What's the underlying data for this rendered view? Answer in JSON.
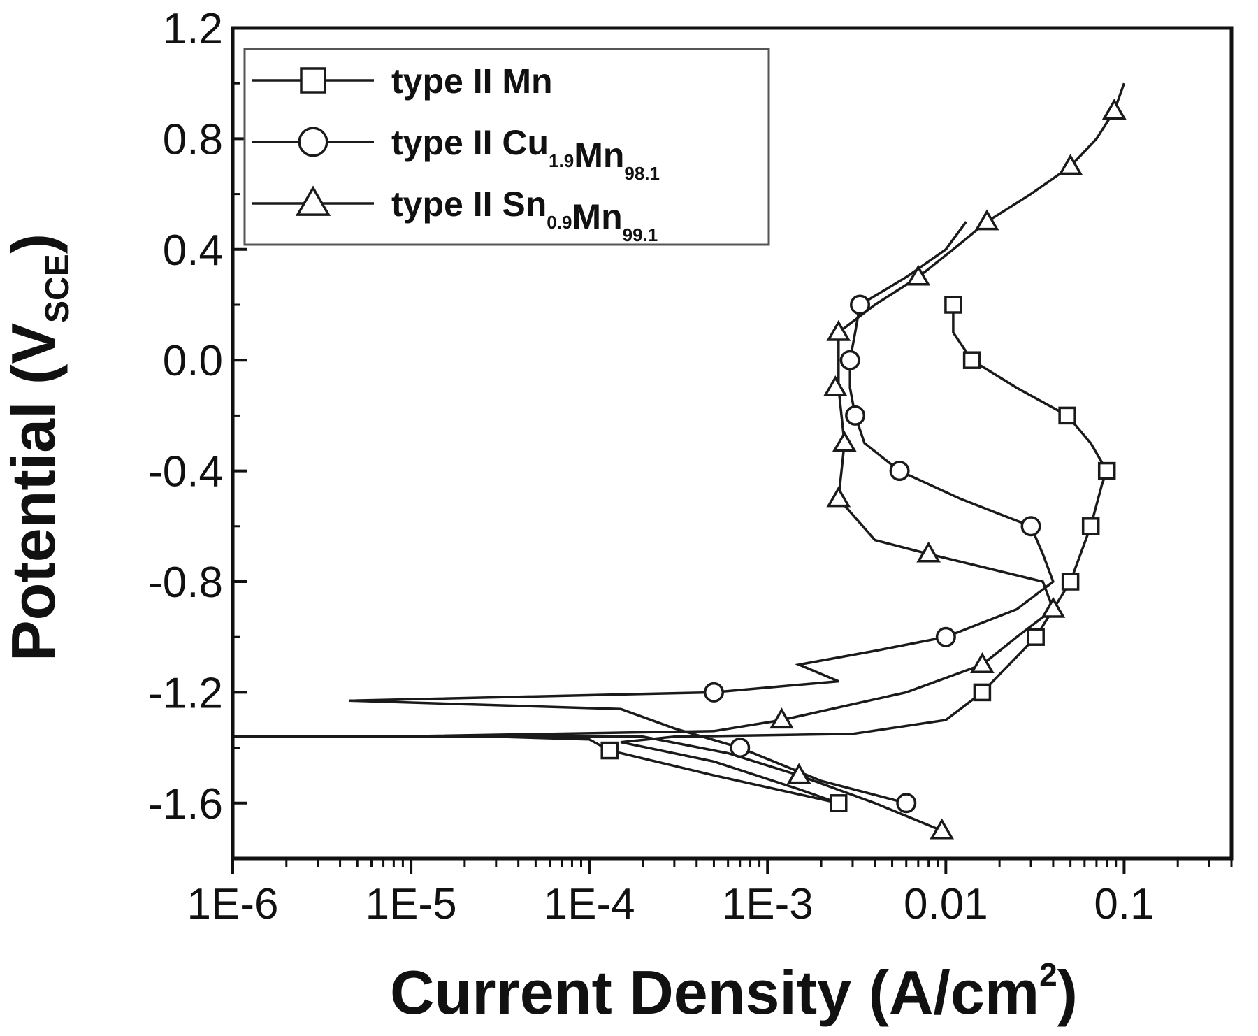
{
  "chart_data": {
    "type": "line",
    "title": "",
    "xlabel_main": "Current Density (A/cm",
    "xlabel_sup": "2",
    "xlabel_close": ")",
    "ylabel_main": "Potential (V",
    "ylabel_sub": "SCE",
    "ylabel_close": ")",
    "x_scale": "log",
    "xlim": [
      1e-06,
      0.4
    ],
    "ylim": [
      -1.8,
      1.2
    ],
    "x_ticks": [
      1e-06,
      1e-05,
      0.0001,
      0.001,
      0.01,
      0.1
    ],
    "x_tick_labels": [
      "1E-6",
      "1E-5",
      "1E-4",
      "1E-3",
      "0.01",
      "0.1"
    ],
    "y_ticks": [
      1.2,
      0.8,
      0.4,
      0.0,
      -0.4,
      -0.8,
      -1.2,
      -1.6
    ],
    "y_tick_labels": [
      "1.2",
      "0.8",
      "0.4",
      "0.0",
      "-0.4",
      "-0.8",
      "-1.2",
      "-1.6"
    ],
    "grid": false,
    "legend_position": "top-left",
    "colors": {
      "line": "#1a1a1a",
      "frame": "#111111",
      "marker_fill": "#ffffff"
    },
    "series": [
      {
        "name": "type II Mn",
        "label_parts": [
          {
            "t": "type II Mn"
          }
        ],
        "marker": "square",
        "line": [
          [
            1e-06,
            -1.36
          ],
          [
            3e-05,
            -1.36
          ],
          [
            0.0001,
            -1.37
          ],
          [
            0.00013,
            -1.41
          ],
          [
            0.0005,
            -1.5
          ],
          [
            0.0025,
            -1.6
          ],
          [
            0.0015,
            -1.55
          ],
          [
            0.0005,
            -1.45
          ],
          [
            0.00015,
            -1.38
          ],
          [
            0.0003,
            -1.36
          ],
          [
            0.003,
            -1.35
          ],
          [
            0.01,
            -1.3
          ],
          [
            0.016,
            -1.2
          ],
          [
            0.032,
            -1.0
          ],
          [
            0.05,
            -0.8
          ],
          [
            0.065,
            -0.6
          ],
          [
            0.075,
            -0.45
          ],
          [
            0.08,
            -0.4
          ],
          [
            0.065,
            -0.3
          ],
          [
            0.048,
            -0.2
          ],
          [
            0.025,
            -0.1
          ],
          [
            0.014,
            0.0
          ],
          [
            0.011,
            0.1
          ],
          [
            0.011,
            0.2
          ]
        ],
        "points": [
          [
            0.011,
            0.2
          ],
          [
            0.014,
            0.0
          ],
          [
            0.048,
            -0.2
          ],
          [
            0.08,
            -0.4
          ],
          [
            0.065,
            -0.6
          ],
          [
            0.05,
            -0.8
          ],
          [
            0.032,
            -1.0
          ],
          [
            0.016,
            -1.2
          ],
          [
            0.00013,
            -1.41
          ],
          [
            0.0025,
            -1.6
          ]
        ]
      },
      {
        "name": "type II Cu1.9Mn98.1",
        "label_parts": [
          {
            "t": "type II Cu"
          },
          {
            "t": "1.9",
            "sub": true
          },
          {
            "t": "Mn"
          },
          {
            "t": "98.1",
            "sub": true
          }
        ],
        "marker": "circle",
        "line": [
          [
            0.006,
            -1.6
          ],
          [
            0.002,
            -1.52
          ],
          [
            0.0007,
            -1.4
          ],
          [
            0.0003,
            -1.33
          ],
          [
            0.00015,
            -1.26
          ],
          [
            4.5e-06,
            -1.23
          ],
          [
            0.0005,
            -1.2
          ],
          [
            0.0025,
            -1.16
          ],
          [
            0.0015,
            -1.1
          ],
          [
            0.004,
            -1.05
          ],
          [
            0.01,
            -1.0
          ],
          [
            0.025,
            -0.9
          ],
          [
            0.04,
            -0.8
          ],
          [
            0.035,
            -0.7
          ],
          [
            0.03,
            -0.6
          ],
          [
            0.012,
            -0.5
          ],
          [
            0.0055,
            -0.4
          ],
          [
            0.0035,
            -0.3
          ],
          [
            0.0031,
            -0.2
          ],
          [
            0.0029,
            -0.1
          ],
          [
            0.0029,
            0.0
          ],
          [
            0.0031,
            0.1
          ],
          [
            0.0033,
            0.2
          ],
          [
            0.006,
            0.3
          ],
          [
            0.01,
            0.4
          ],
          [
            0.013,
            0.5
          ]
        ],
        "points": [
          [
            0.0033,
            0.2
          ],
          [
            0.0029,
            0.0
          ],
          [
            0.0031,
            -0.2
          ],
          [
            0.0055,
            -0.4
          ],
          [
            0.03,
            -0.6
          ],
          [
            0.01,
            -1.0
          ],
          [
            0.0005,
            -1.2
          ],
          [
            0.0007,
            -1.4
          ],
          [
            0.006,
            -1.6
          ]
        ]
      },
      {
        "name": "type II Sn0.9Mn99.1",
        "label_parts": [
          {
            "t": "type II Sn"
          },
          {
            "t": "0.9",
            "sub": true
          },
          {
            "t": "Mn"
          },
          {
            "t": "99.1",
            "sub": true
          }
        ],
        "marker": "triangle",
        "line": [
          [
            0.0095,
            -1.7
          ],
          [
            0.004,
            -1.6
          ],
          [
            0.0015,
            -1.5
          ],
          [
            0.0006,
            -1.42
          ],
          [
            0.0002,
            -1.36
          ],
          [
            7e-06,
            -1.36
          ],
          [
            0.0005,
            -1.34
          ],
          [
            0.0012,
            -1.3
          ],
          [
            0.006,
            -1.2
          ],
          [
            0.016,
            -1.1
          ],
          [
            0.025,
            -1.0
          ],
          [
            0.04,
            -0.9
          ],
          [
            0.035,
            -0.8
          ],
          [
            0.008,
            -0.7
          ],
          [
            0.004,
            -0.65
          ],
          [
            0.0025,
            -0.5
          ],
          [
            0.0027,
            -0.3
          ],
          [
            0.0025,
            -0.1
          ],
          [
            0.0025,
            0.1
          ],
          [
            0.004,
            0.2
          ],
          [
            0.007,
            0.3
          ],
          [
            0.011,
            0.4
          ],
          [
            0.017,
            0.5
          ],
          [
            0.03,
            0.6
          ],
          [
            0.05,
            0.7
          ],
          [
            0.07,
            0.8
          ],
          [
            0.088,
            0.9
          ],
          [
            0.1,
            1.0
          ]
        ],
        "points": [
          [
            0.088,
            0.9
          ],
          [
            0.05,
            0.7
          ],
          [
            0.017,
            0.5
          ],
          [
            0.007,
            0.3
          ],
          [
            0.0025,
            0.1
          ],
          [
            0.0024,
            -0.1
          ],
          [
            0.0027,
            -0.3
          ],
          [
            0.0025,
            -0.5
          ],
          [
            0.008,
            -0.7
          ],
          [
            0.04,
            -0.9
          ],
          [
            0.016,
            -1.1
          ],
          [
            0.0012,
            -1.3
          ],
          [
            0.0015,
            -1.5
          ],
          [
            0.0095,
            -1.7
          ]
        ]
      }
    ]
  }
}
